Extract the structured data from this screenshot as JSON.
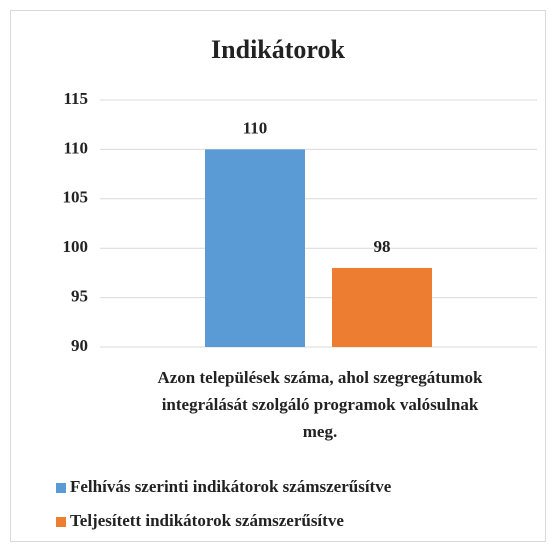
{
  "chart_data": {
    "type": "bar",
    "title": "Indikátorok",
    "categories": [
      "Azon települések száma, ahol szegregátumok integrálását szolgáló programok valósulnak meg."
    ],
    "series": [
      {
        "name": "Felhívás szerinti indikátorok számszerűsítve",
        "color": "#5b9bd5",
        "values": [
          110
        ]
      },
      {
        "name": "Teljesített indikátorok számszerűsítve",
        "color": "#ed7d31",
        "values": [
          98
        ]
      }
    ],
    "ylim": [
      90,
      115
    ],
    "yticks": [
      90,
      95,
      100,
      105,
      110,
      115
    ],
    "grid": true,
    "legend": "bottom"
  }
}
